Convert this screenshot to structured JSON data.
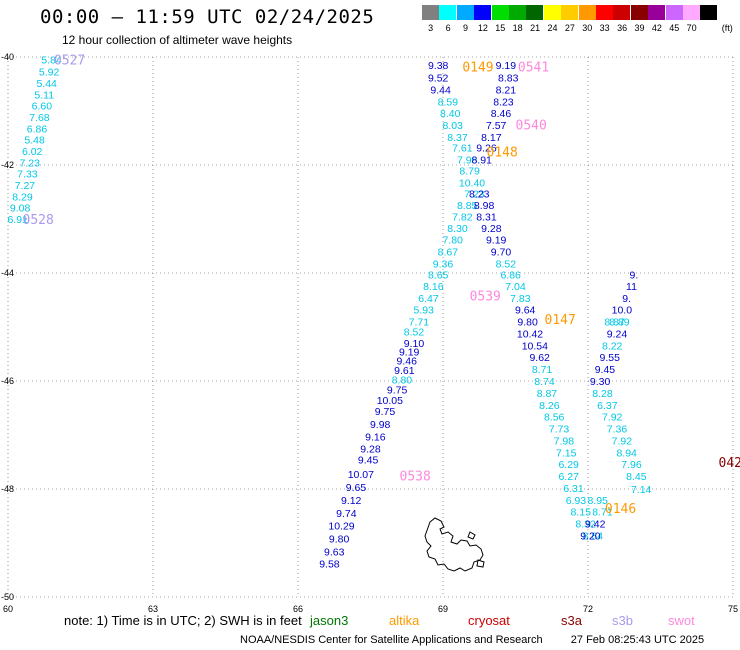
{
  "header": {
    "title": "00:00 – 11:59 UTC 02/24/2025",
    "subtitle": "12 hour collection of altimeter wave heights"
  },
  "colorbar": {
    "unit": "(ft)",
    "steps": [
      {
        "label": "3",
        "color": "#808080"
      },
      {
        "label": "6",
        "color": "#00ffff"
      },
      {
        "label": "9",
        "color": "#00aaff"
      },
      {
        "label": "12",
        "color": "#0000ff"
      },
      {
        "label": "15",
        "color": "#00dd00"
      },
      {
        "label": "18",
        "color": "#00aa00"
      },
      {
        "label": "21",
        "color": "#006600"
      },
      {
        "label": "24",
        "color": "#ffff00"
      },
      {
        "label": "27",
        "color": "#ffcc00"
      },
      {
        "label": "30",
        "color": "#ff9900"
      },
      {
        "label": "33",
        "color": "#ff0000"
      },
      {
        "label": "36",
        "color": "#cc0000"
      },
      {
        "label": "39",
        "color": "#880000"
      },
      {
        "label": "42",
        "color": "#990099"
      },
      {
        "label": "45",
        "color": "#cc66ff"
      },
      {
        "label": "70",
        "color": "#ffaaff"
      },
      {
        "label": "",
        "color": "#000000"
      }
    ]
  },
  "map": {
    "lon_ticks": [
      "60",
      "63",
      "66",
      "69",
      "72",
      "75"
    ],
    "lat_ticks": [
      "-40",
      "-42",
      "-44",
      "-46",
      "-48",
      "-50"
    ],
    "lon_range": [
      60,
      75
    ],
    "lat_range": [
      -40,
      -50
    ],
    "colors": {
      "cyan": "#00c8e6",
      "blue": "#0000cc",
      "orange": "#ff9900",
      "pink": "#ff88dd",
      "lilac": "#aa99ee",
      "darkred": "#880000"
    },
    "tracks": [
      {
        "color": "cyan",
        "labels": [
          {
            "v": "5.84",
            "lon": 60.9,
            "lat": -40.05
          },
          {
            "v": "5.92",
            "lon": 60.85,
            "lat": -40.27
          },
          {
            "v": "5.44",
            "lon": 60.8,
            "lat": -40.48
          },
          {
            "v": "5.11",
            "lon": 60.75,
            "lat": -40.69
          },
          {
            "v": "6.60",
            "lon": 60.7,
            "lat": -40.9
          },
          {
            "v": "7.68",
            "lon": 60.65,
            "lat": -41.11
          },
          {
            "v": "6.86",
            "lon": 60.6,
            "lat": -41.32
          },
          {
            "v": "5.48",
            "lon": 60.55,
            "lat": -41.53
          },
          {
            "v": "6.02",
            "lon": 60.5,
            "lat": -41.74
          },
          {
            "v": "7.23",
            "lon": 60.45,
            "lat": -41.95
          },
          {
            "v": "7.33",
            "lon": 60.4,
            "lat": -42.16
          },
          {
            "v": "7.27",
            "lon": 60.35,
            "lat": -42.37
          },
          {
            "v": "8.29",
            "lon": 60.3,
            "lat": -42.58
          },
          {
            "v": "9.08",
            "lon": 60.25,
            "lat": -42.79
          },
          {
            "v": "6.91",
            "lon": 60.2,
            "lat": -43.0
          }
        ]
      },
      {
        "color": "blue",
        "labels": [
          {
            "v": "9.38",
            "lon": 68.9,
            "lat": -40.15
          },
          {
            "v": "9.52",
            "lon": 68.9,
            "lat": -40.38
          },
          {
            "v": "9.44",
            "lon": 68.95,
            "lat": -40.6
          }
        ]
      },
      {
        "color": "cyan",
        "labels": [
          {
            "v": "8.59",
            "lon": 69.1,
            "lat": -40.82
          },
          {
            "v": "8.40",
            "lon": 69.15,
            "lat": -41.04
          },
          {
            "v": "8.03",
            "lon": 69.2,
            "lat": -41.26
          },
          {
            "v": "8.37",
            "lon": 69.3,
            "lat": -41.48
          },
          {
            "v": "7.61",
            "lon": 69.4,
            "lat": -41.68
          },
          {
            "v": "7.96",
            "lon": 69.5,
            "lat": -41.9
          },
          {
            "v": "8.79",
            "lon": 69.55,
            "lat": -42.1
          },
          {
            "v": "10.40",
            "lon": 69.6,
            "lat": -42.32
          },
          {
            "v": "7.23",
            "lon": 69.65,
            "lat": -42.53
          },
          {
            "v": "8.85",
            "lon": 69.5,
            "lat": -42.74
          },
          {
            "v": "7.82",
            "lon": 69.4,
            "lat": -42.95
          },
          {
            "v": "8.30",
            "lon": 69.3,
            "lat": -43.17
          },
          {
            "v": "7.80",
            "lon": 69.2,
            "lat": -43.38
          },
          {
            "v": "8.67",
            "lon": 69.1,
            "lat": -43.6
          },
          {
            "v": "9.36",
            "lon": 69.0,
            "lat": -43.82
          },
          {
            "v": "8.65",
            "lon": 68.9,
            "lat": -44.03
          },
          {
            "v": "8.16",
            "lon": 68.8,
            "lat": -44.24
          },
          {
            "v": "6.47",
            "lon": 68.7,
            "lat": -44.46
          },
          {
            "v": "5.93",
            "lon": 68.6,
            "lat": -44.68
          },
          {
            "v": "7.71",
            "lon": 68.5,
            "lat": -44.9
          },
          {
            "v": "8.52",
            "lon": 68.4,
            "lat": -45.08
          }
        ]
      },
      {
        "color": "blue",
        "labels": [
          {
            "v": "9.19",
            "lon": 70.3,
            "lat": -40.15
          },
          {
            "v": "8.83",
            "lon": 70.35,
            "lat": -40.38
          },
          {
            "v": "8.21",
            "lon": 70.3,
            "lat": -40.6
          },
          {
            "v": "8.23",
            "lon": 70.25,
            "lat": -40.82
          },
          {
            "v": "8.46",
            "lon": 70.2,
            "lat": -41.04
          },
          {
            "v": "7.57",
            "lon": 70.1,
            "lat": -41.26
          },
          {
            "v": "8.17",
            "lon": 70.0,
            "lat": -41.48
          },
          {
            "v": "9.26",
            "lon": 69.9,
            "lat": -41.68
          },
          {
            "v": "8.91",
            "lon": 69.8,
            "lat": -41.9
          },
          {
            "v": "8.23",
            "lon": 69.75,
            "lat": -42.53
          },
          {
            "v": "8.98",
            "lon": 69.85,
            "lat": -42.74
          },
          {
            "v": "8.31",
            "lon": 69.9,
            "lat": -42.95
          },
          {
            "v": "9.28",
            "lon": 70.0,
            "lat": -43.17
          },
          {
            "v": "9.19",
            "lon": 70.1,
            "lat": -43.38
          },
          {
            "v": "9.70",
            "lon": 70.2,
            "lat": -43.6
          }
        ]
      },
      {
        "color": "cyan",
        "labels": [
          {
            "v": "8.52",
            "lon": 70.3,
            "lat": -43.82
          },
          {
            "v": "6.86",
            "lon": 70.4,
            "lat": -44.03
          },
          {
            "v": "7.04",
            "lon": 70.5,
            "lat": -44.24
          },
          {
            "v": "7.83",
            "lon": 70.6,
            "lat": -44.46
          }
        ]
      },
      {
        "color": "blue",
        "labels": [
          {
            "v": "9.64",
            "lon": 70.7,
            "lat": -44.68
          },
          {
            "v": "9.80",
            "lon": 70.75,
            "lat": -44.9
          },
          {
            "v": "10.42",
            "lon": 70.8,
            "lat": -45.12
          },
          {
            "v": "10.54",
            "lon": 70.9,
            "lat": -45.34
          },
          {
            "v": "9.62",
            "lon": 71.0,
            "lat": -45.56
          }
        ]
      },
      {
        "color": "cyan",
        "labels": [
          {
            "v": "8.71",
            "lon": 71.05,
            "lat": -45.78
          },
          {
            "v": "8.74",
            "lon": 71.1,
            "lat": -46.0
          },
          {
            "v": "8.87",
            "lon": 71.15,
            "lat": -46.22
          },
          {
            "v": "8.26",
            "lon": 71.2,
            "lat": -46.44
          },
          {
            "v": "8.56",
            "lon": 71.3,
            "lat": -46.66
          },
          {
            "v": "7.73",
            "lon": 71.4,
            "lat": -46.88
          },
          {
            "v": "7.98",
            "lon": 71.5,
            "lat": -47.1
          },
          {
            "v": "7.15",
            "lon": 71.55,
            "lat": -47.32
          },
          {
            "v": "6.29",
            "lon": 71.6,
            "lat": -47.54
          },
          {
            "v": "6.27",
            "lon": 71.6,
            "lat": -47.76
          },
          {
            "v": "6.31",
            "lon": 71.7,
            "lat": -47.98
          },
          {
            "v": "6.93",
            "lon": 71.75,
            "lat": -48.2
          },
          {
            "v": "8.15",
            "lon": 71.85,
            "lat": -48.42
          },
          {
            "v": "8.32",
            "lon": 71.95,
            "lat": -48.64
          },
          {
            "v": "8.64",
            "lon": 72.1,
            "lat": -48.86
          }
        ]
      },
      {
        "color": "blue",
        "labels": [
          {
            "v": "9.10",
            "lon": 68.4,
            "lat": -45.3
          },
          {
            "v": "9.19",
            "lon": 68.3,
            "lat": -45.45
          },
          {
            "v": "9.46",
            "lon": 68.25,
            "lat": -45.62
          },
          {
            "v": "9.61",
            "lon": 68.2,
            "lat": -45.8
          }
        ]
      },
      {
        "color": "cyan",
        "labels": [
          {
            "v": "8.80",
            "lon": 68.15,
            "lat": -45.97
          }
        ]
      },
      {
        "color": "blue",
        "labels": [
          {
            "v": "9.75",
            "lon": 68.05,
            "lat": -46.16
          },
          {
            "v": "10.05",
            "lon": 67.9,
            "lat": -46.35
          },
          {
            "v": "9.75",
            "lon": 67.8,
            "lat": -46.56
          },
          {
            "v": "9.98",
            "lon": 67.7,
            "lat": -46.8
          },
          {
            "v": "9.16",
            "lon": 67.6,
            "lat": -47.03
          },
          {
            "v": "9.28",
            "lon": 67.5,
            "lat": -47.25
          },
          {
            "v": "9.45",
            "lon": 67.45,
            "lat": -47.45
          },
          {
            "v": "10.07",
            "lon": 67.3,
            "lat": -47.72
          },
          {
            "v": "9.65",
            "lon": 67.2,
            "lat": -47.96
          },
          {
            "v": "9.12",
            "lon": 67.1,
            "lat": -48.2
          },
          {
            "v": "9.74",
            "lon": 67.0,
            "lat": -48.44
          },
          {
            "v": "10.29",
            "lon": 66.9,
            "lat": -48.68
          },
          {
            "v": "9.80",
            "lon": 66.85,
            "lat": -48.92
          },
          {
            "v": "9.63",
            "lon": 66.75,
            "lat": -49.16
          },
          {
            "v": "9.58",
            "lon": 66.65,
            "lat": -49.38
          }
        ]
      },
      {
        "color": "cyan",
        "labels": [
          {
            "v": "7.14",
            "lon": 73.1,
            "lat": -48.0
          },
          {
            "v": "8.45",
            "lon": 73.0,
            "lat": -47.76
          },
          {
            "v": "7.96",
            "lon": 72.9,
            "lat": -47.54
          },
          {
            "v": "8.94",
            "lon": 72.8,
            "lat": -47.32
          },
          {
            "v": "7.92",
            "lon": 72.7,
            "lat": -47.1
          },
          {
            "v": "7.36",
            "lon": 72.6,
            "lat": -46.88
          },
          {
            "v": "7.92",
            "lon": 72.5,
            "lat": -46.66
          },
          {
            "v": "6.37",
            "lon": 72.4,
            "lat": -46.44
          },
          {
            "v": "8.28",
            "lon": 72.3,
            "lat": -46.22
          },
          {
            "v": "8.95",
            "lon": 72.2,
            "lat": -48.2
          },
          {
            "v": "8.71",
            "lon": 72.3,
            "lat": -48.42
          }
        ]
      },
      {
        "color": "blue",
        "labels": [
          {
            "v": "9.42",
            "lon": 72.15,
            "lat": -48.64
          },
          {
            "v": "9.20",
            "lon": 72.05,
            "lat": -48.86
          }
        ]
      },
      {
        "color": "blue",
        "labels": [
          {
            "v": "9.30",
            "lon": 72.25,
            "lat": -46.0
          },
          {
            "v": "9.45",
            "lon": 72.35,
            "lat": -45.78
          },
          {
            "v": "9.55",
            "lon": 72.45,
            "lat": -45.56
          },
          {
            "v": "9.24",
            "lon": 72.6,
            "lat": -45.12
          },
          {
            "v": "10.0",
            "lon": 72.7,
            "lat": -44.68
          },
          {
            "v": "9.",
            "lon": 72.8,
            "lat": -44.46
          },
          {
            "v": "11",
            "lon": 72.9,
            "lat": -44.24
          },
          {
            "v": "9.",
            "lon": 72.95,
            "lat": -44.03
          }
        ]
      },
      {
        "color": "cyan",
        "labels": [
          {
            "v": "8.22",
            "lon": 72.5,
            "lat": -45.34
          },
          {
            "v": "8.87",
            "lon": 72.55,
            "lat": -44.9
          },
          {
            "v": "8.89",
            "lon": 72.65,
            "lat": -44.9
          }
        ]
      }
    ],
    "passes": [
      {
        "id": "0527",
        "color": "lilac",
        "lon": 60.95,
        "lat": -40.05
      },
      {
        "id": "0528",
        "color": "lilac",
        "lon": 60.3,
        "lat": -43.0
      },
      {
        "id": "0149",
        "color": "orange",
        "lon": 69.4,
        "lat": -40.18
      },
      {
        "id": "0541",
        "color": "pink",
        "lon": 70.55,
        "lat": -40.18
      },
      {
        "id": "0540",
        "color": "pink",
        "lon": 70.5,
        "lat": -41.25
      },
      {
        "id": "0148",
        "color": "orange",
        "lon": 69.9,
        "lat": -41.75
      },
      {
        "id": "0539",
        "color": "pink",
        "lon": 69.55,
        "lat": -44.42
      },
      {
        "id": "0147",
        "color": "orange",
        "lon": 71.1,
        "lat": -44.85
      },
      {
        "id": "0538",
        "color": "pink",
        "lon": 68.1,
        "lat": -47.75
      },
      {
        "id": "0146",
        "color": "orange",
        "lon": 72.35,
        "lat": -48.35
      },
      {
        "id": "042",
        "color": "darkred",
        "lon": 74.7,
        "lat": -47.5
      }
    ]
  },
  "note": "note: 1) Time is in UTC; 2) SWH is in feet",
  "legend": [
    {
      "label": "jason3",
      "color": "#007700"
    },
    {
      "label": "altika",
      "color": "#ff9900"
    },
    {
      "label": "cryosat",
      "color": "#cc0000"
    },
    {
      "label": "s3a",
      "color": "#880000"
    },
    {
      "label": "s3b",
      "color": "#aa99ee"
    },
    {
      "label": "swot",
      "color": "#ff88dd"
    }
  ],
  "footer": {
    "center": "NOAA/NESDIS Center for Satellite Applications and Research",
    "timestamp": "27 Feb 08:25:43 UTC 2025"
  }
}
